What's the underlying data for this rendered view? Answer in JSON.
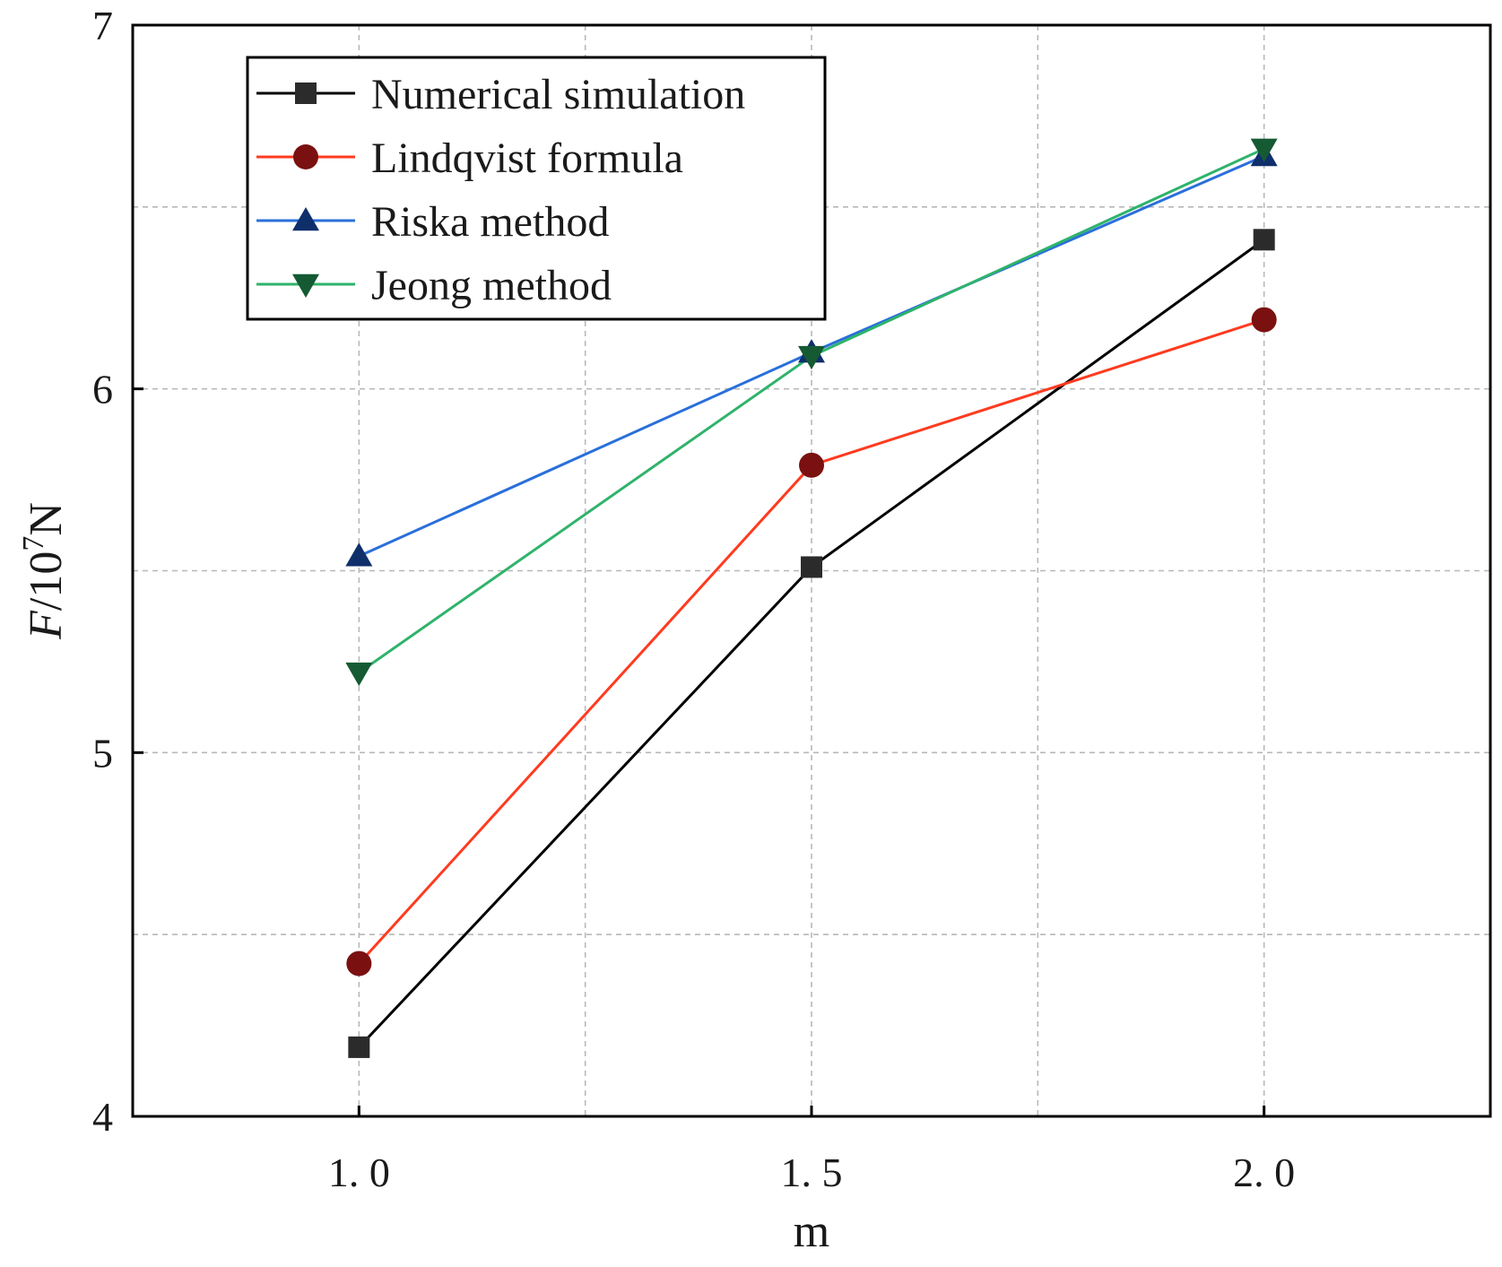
{
  "chart_data": {
    "type": "line",
    "title": "",
    "xlabel": "m",
    "ylabel": {
      "var": "F",
      "unit_prefix": "/10",
      "unit_exp": "7",
      "unit_suffix": "N"
    },
    "x": [
      1.0,
      1.5,
      2.0
    ],
    "x_tick_labels": [
      "1. 0",
      "1. 5",
      "2. 0"
    ],
    "y_ticks": [
      4,
      5,
      6,
      7
    ],
    "y_tick_labels": [
      "4",
      "5",
      "6",
      "7"
    ],
    "xlim": [
      0.75,
      2.25
    ],
    "ylim": [
      4,
      7
    ],
    "grid": true,
    "legend_position": "top-left",
    "series": [
      {
        "name": "Numerical simulation",
        "color": "#000000",
        "marker_color": "#2b2b2b",
        "marker": "square",
        "values": [
          4.19,
          5.51,
          6.41
        ]
      },
      {
        "name": "Lindqvist formula",
        "color": "#ff3b1f",
        "marker_color": "#7b1010",
        "marker": "circle",
        "values": [
          4.42,
          5.79,
          6.19
        ]
      },
      {
        "name": "Riska method",
        "color": "#2a6fdb",
        "marker_color": "#0f2f6b",
        "marker": "triangle-up",
        "values": [
          5.54,
          6.1,
          6.64
        ]
      },
      {
        "name": "Jeong method",
        "color": "#2fb36b",
        "marker_color": "#155a33",
        "marker": "triangle-down",
        "values": [
          5.22,
          6.09,
          6.66
        ]
      }
    ]
  }
}
